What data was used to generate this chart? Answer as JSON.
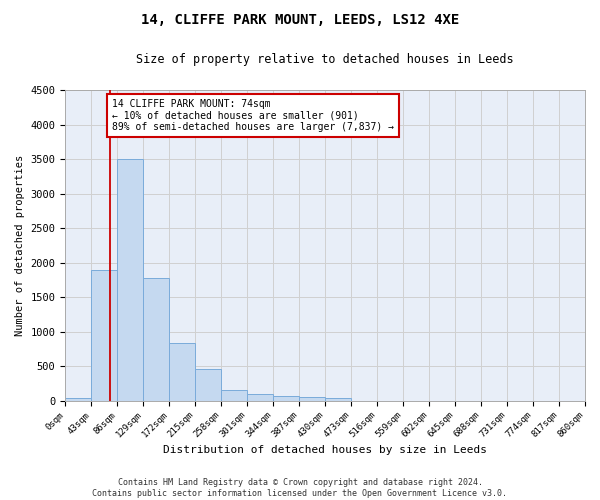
{
  "title1": "14, CLIFFE PARK MOUNT, LEEDS, LS12 4XE",
  "title2": "Size of property relative to detached houses in Leeds",
  "xlabel": "Distribution of detached houses by size in Leeds",
  "ylabel": "Number of detached properties",
  "bin_labels": [
    "0sqm",
    "43sqm",
    "86sqm",
    "129sqm",
    "172sqm",
    "215sqm",
    "258sqm",
    "301sqm",
    "344sqm",
    "387sqm",
    "430sqm",
    "473sqm",
    "516sqm",
    "559sqm",
    "602sqm",
    "645sqm",
    "688sqm",
    "731sqm",
    "774sqm",
    "817sqm",
    "860sqm"
  ],
  "bar_values": [
    40,
    1900,
    3500,
    1780,
    840,
    460,
    160,
    95,
    65,
    55,
    40,
    0,
    0,
    0,
    0,
    0,
    0,
    0,
    0,
    0
  ],
  "bar_color": "#c5d9f0",
  "bar_edge_color": "#7aabda",
  "grid_color": "#d0d0d0",
  "bg_color": "#e8eef8",
  "property_line_x": 74,
  "bin_width": 43,
  "annotation_text": "14 CLIFFE PARK MOUNT: 74sqm\n← 10% of detached houses are smaller (901)\n89% of semi-detached houses are larger (7,837) →",
  "annotation_box_color": "#cc0000",
  "footer_line1": "Contains HM Land Registry data © Crown copyright and database right 2024.",
  "footer_line2": "Contains public sector information licensed under the Open Government Licence v3.0.",
  "ylim": [
    0,
    4500
  ],
  "yticks": [
    0,
    500,
    1000,
    1500,
    2000,
    2500,
    3000,
    3500,
    4000,
    4500
  ]
}
